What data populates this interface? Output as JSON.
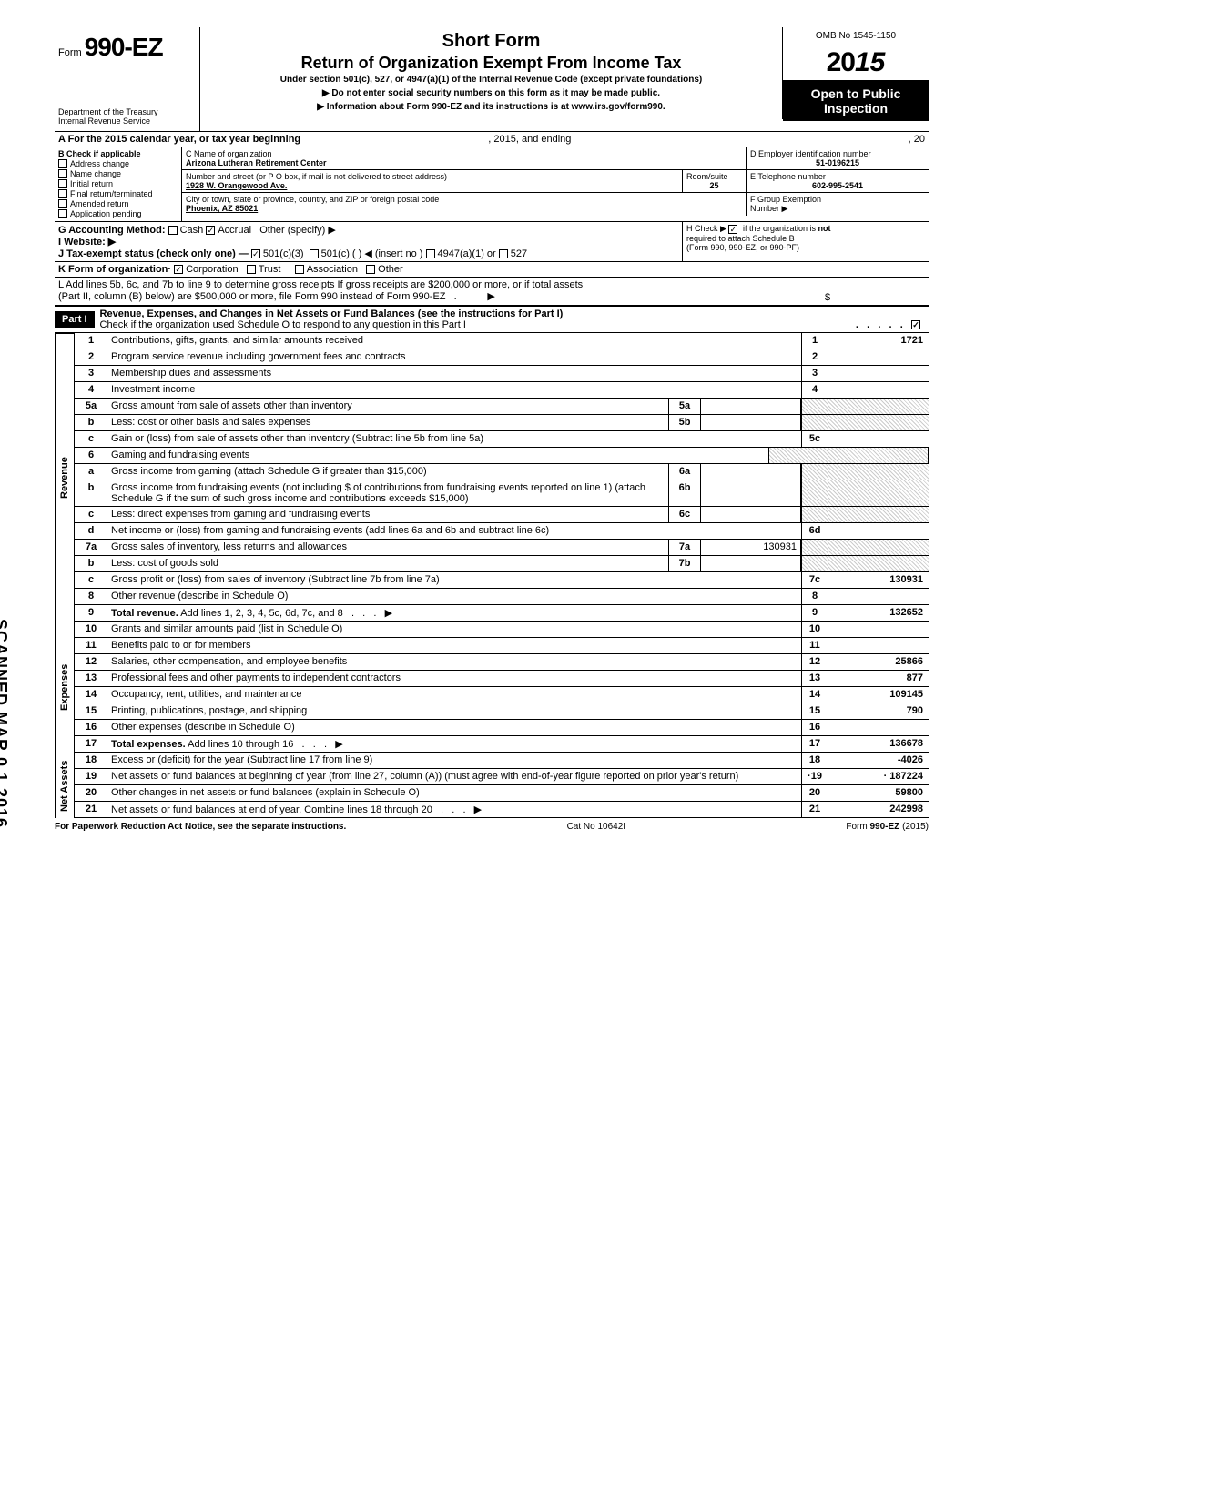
{
  "header": {
    "form_label": "Form",
    "form_number": "990-EZ",
    "short_form": "Short Form",
    "return_title": "Return of Organization Exempt From Income Tax",
    "subtitle": "Under section 501(c), 527, or 4947(a)(1) of the Internal Revenue Code (except private foundations)",
    "warning": "▶ Do not enter social security numbers on this form as it may be made public.",
    "info": "▶ Information about Form 990-EZ and its instructions is at www.irs.gov/form990.",
    "dept": "Department of the Treasury",
    "irs": "Internal Revenue Service",
    "omb": "OMB No 1545-1150",
    "year_prefix": "20",
    "year_suffix": "15",
    "open_public_1": "Open to Public",
    "open_public_2": "Inspection"
  },
  "rowA": {
    "label": "A  For the 2015 calendar year, or tax year beginning",
    "mid": ", 2015, and ending",
    "end": ", 20"
  },
  "colB": {
    "label": "B  Check if applicable",
    "items": [
      "Address change",
      "Name change",
      "Initial return",
      "Final return/terminated",
      "Amended return",
      "Application pending"
    ]
  },
  "colC": {
    "name_label": "C  Name of organization",
    "name_value": "Arizona Lutheran Retirement Center",
    "addr_label": "Number and street (or P O  box, if mail is not delivered to street address)",
    "addr_value": "1928 W. Orangewood Ave.",
    "room_label": "Room/suite",
    "room_value": "25",
    "city_label": "City or town, state or province, country, and ZIP or foreign postal code",
    "city_value": "Phoenix, AZ 85021"
  },
  "colD": {
    "label": "D Employer identification number",
    "value": "51-0196215"
  },
  "colE": {
    "label": "E  Telephone number",
    "value": "602-995-2541"
  },
  "colF": {
    "label": "F  Group Exemption",
    "label2": "Number ▶"
  },
  "rowG": {
    "label": "G  Accounting Method:",
    "cash": "Cash",
    "accrual": "Accrual",
    "other": "Other (specify) ▶"
  },
  "rowH": {
    "text1": "H  Check ▶",
    "text2": "if the organization is",
    "text3": "not",
    "text4": "required to attach Schedule B",
    "text5": "(Form 990, 990-EZ, or 990-PF)"
  },
  "rowI": {
    "label": "I   Website: ▶"
  },
  "rowJ": {
    "label": "J  Tax-exempt status (check only one) —",
    "c3": "501(c)(3)",
    "c": "501(c) (",
    "insert": ") ◀ (insert no )",
    "a1": "4947(a)(1) or",
    "s527": "527"
  },
  "rowK": {
    "label": "K  Form of organization·",
    "corp": "Corporation",
    "trust": "Trust",
    "assoc": "Association",
    "other": "Other"
  },
  "rowL": {
    "text1": "L  Add lines 5b, 6c, and 7b to line 9 to determine gross receipts  If gross receipts are $200,000 or more, or if total assets",
    "text2": "(Part II, column (B) below) are $500,000 or more, file Form 990 instead of Form 990-EZ",
    "arrow": "▶",
    "dollar": "$"
  },
  "part1": {
    "label": "Part I",
    "title": "Revenue, Expenses, and Changes in Net Assets or Fund Balances (see the instructions for Part I)",
    "check_line": "Check if the organization used Schedule O to respond to any question in this Part I"
  },
  "sections": {
    "revenue": "Revenue",
    "expenses": "Expenses",
    "netassets": "Net Assets"
  },
  "lines": [
    {
      "n": "1",
      "d": "Contributions, gifts, grants, and similar amounts received",
      "en": "1",
      "ev": "1721"
    },
    {
      "n": "2",
      "d": "Program service revenue including government fees and contracts",
      "en": "2",
      "ev": ""
    },
    {
      "n": "3",
      "d": "Membership dues and assessments",
      "en": "3",
      "ev": ""
    },
    {
      "n": "4",
      "d": "Investment income",
      "en": "4",
      "ev": ""
    },
    {
      "n": "5a",
      "d": "Gross amount from sale of assets other than inventory",
      "mn": "5a",
      "mv": "",
      "shaded": true
    },
    {
      "n": "b",
      "d": "Less: cost or other basis and sales expenses",
      "mn": "5b",
      "mv": "",
      "shaded": true
    },
    {
      "n": "c",
      "d": "Gain or (loss) from sale of assets other than inventory (Subtract line 5b from line 5a)",
      "en": "5c",
      "ev": ""
    },
    {
      "n": "6",
      "d": "Gaming and fundraising events",
      "noend": true
    },
    {
      "n": "a",
      "d": "Gross income from gaming (attach Schedule G if greater than $15,000)",
      "mn": "6a",
      "mv": "",
      "shaded": true
    },
    {
      "n": "b",
      "d": "Gross income from fundraising events (not including  $                           of contributions from fundraising events reported on line 1) (attach Schedule G if the sum of such gross income and contributions exceeds $15,000)",
      "mn": "6b",
      "mv": "",
      "shaded": true
    },
    {
      "n": "c",
      "d": "Less: direct expenses from gaming and fundraising events",
      "mn": "6c",
      "mv": "",
      "shaded": true
    },
    {
      "n": "d",
      "d": "Net income or (loss) from gaming and fundraising events (add lines 6a and 6b and subtract line 6c)",
      "en": "6d",
      "ev": ""
    },
    {
      "n": "7a",
      "d": "Gross sales of inventory, less returns and allowances",
      "mn": "7a",
      "mv": "130931",
      "shaded": true
    },
    {
      "n": "b",
      "d": "Less: cost of goods sold",
      "mn": "7b",
      "mv": "",
      "shaded": true
    },
    {
      "n": "c",
      "d": "Gross profit or (loss) from sales of inventory (Subtract line 7b from line 7a)",
      "en": "7c",
      "ev": "130931"
    },
    {
      "n": "8",
      "d": "Other revenue (describe in Schedule O)",
      "en": "8",
      "ev": ""
    },
    {
      "n": "9",
      "d": "Total revenue. Add lines 1, 2, 3, 4, 5c, 6d, 7c, and 8",
      "en": "9",
      "ev": "132652",
      "bold": true,
      "arrow": true
    }
  ],
  "exp_lines": [
    {
      "n": "10",
      "d": "Grants and similar amounts paid (list in Schedule O)",
      "en": "10",
      "ev": ""
    },
    {
      "n": "11",
      "d": "Benefits paid to or for members",
      "en": "11",
      "ev": ""
    },
    {
      "n": "12",
      "d": "Salaries, other compensation, and employee benefits",
      "en": "12",
      "ev": "25866"
    },
    {
      "n": "13",
      "d": "Professional fees and other payments to independent contractors",
      "en": "13",
      "ev": "877"
    },
    {
      "n": "14",
      "d": "Occupancy, rent, utilities, and maintenance",
      "en": "14",
      "ev": "109145"
    },
    {
      "n": "15",
      "d": "Printing, publications, postage, and shipping",
      "en": "15",
      "ev": "790"
    },
    {
      "n": "16",
      "d": "Other expenses (describe in Schedule O)",
      "en": "16",
      "ev": ""
    },
    {
      "n": "17",
      "d": "Total expenses. Add lines 10 through 16",
      "en": "17",
      "ev": "136678",
      "bold": true,
      "arrow": true
    }
  ],
  "na_lines": [
    {
      "n": "18",
      "d": "Excess or (deficit) for the year (Subtract line 17 from line 9)",
      "en": "18",
      "ev": "-4026"
    },
    {
      "n": "19",
      "d": "Net assets or fund balances at beginning of year (from line 27, column (A)) (must agree with end-of-year figure reported on prior year's return)",
      "en": "·19",
      "ev": "· 187224",
      "shaded_pre": true
    },
    {
      "n": "20",
      "d": "Other changes in net assets or fund balances (explain in Schedule O)",
      "en": "20",
      "ev": "59800"
    },
    {
      "n": "21",
      "d": "Net assets or fund balances at end of year. Combine lines 18 through 20",
      "en": "21",
      "ev": "242998",
      "arrow": true
    }
  ],
  "footer": {
    "left": "For Paperwork Reduction Act Notice, see the separate instructions.",
    "mid": "Cat  No  10642I",
    "right": "Form 990-EZ (2015)"
  },
  "scanned": "SCANNED MAR 0 1 2016"
}
